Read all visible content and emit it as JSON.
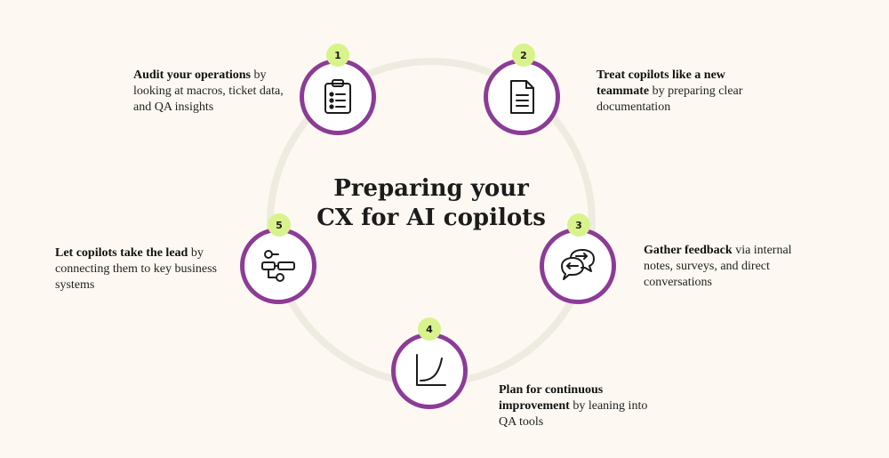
{
  "title": {
    "line1": "Preparing your",
    "line2": "CX for AI copilots"
  },
  "steps": [
    {
      "number": "1",
      "icon": "clipboard-checklist-icon",
      "bold": "Audit your operations",
      "rest": " by looking at macros, ticket data, and QA insights"
    },
    {
      "number": "2",
      "icon": "document-icon",
      "bold": "Treat copilots like a new teammate",
      "rest": " by preparing clear documentation"
    },
    {
      "number": "3",
      "icon": "chat-bubbles-arrows-icon",
      "bold": "Gather feedback",
      "rest": " via internal notes, surveys, and direct conversations"
    },
    {
      "number": "4",
      "icon": "growth-curve-icon",
      "bold": "Plan for continuous improvement",
      "rest": " by leaning into QA tools"
    },
    {
      "number": "5",
      "icon": "workflow-connectors-icon",
      "bold": "Let copilots take the lead",
      "rest": " by connecting them to key business systems"
    }
  ],
  "colors": {
    "ring": "#8c3b97",
    "badge": "#d8f38c",
    "track": "#eeebe1",
    "background": "#fdf9f2"
  }
}
